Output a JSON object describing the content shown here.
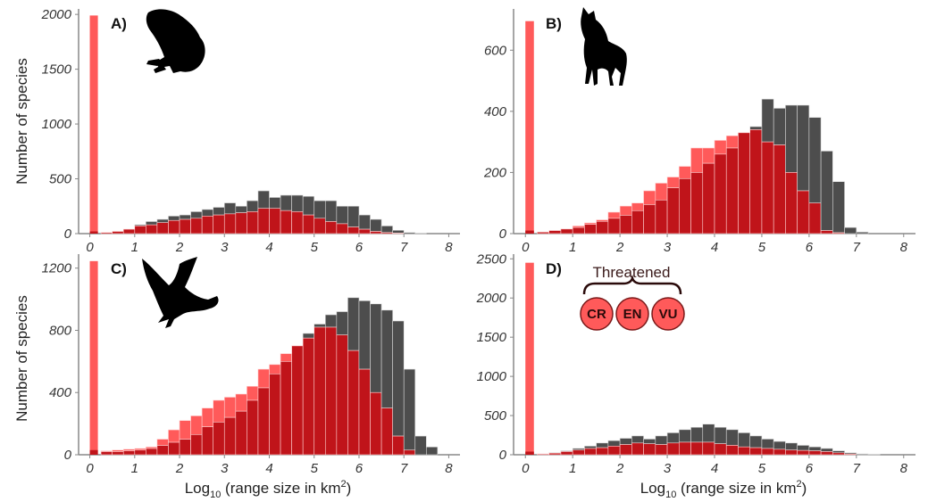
{
  "colors": {
    "threatened_fill": "#ff5a5a",
    "overlap_fill": "#c0141a",
    "total_fill": "#4d4d4d",
    "axis": "#888888",
    "silhouette": "#000000"
  },
  "xlabel_prefix": "Log",
  "xlabel_subscript": "10",
  "xlabel_main": " (range size in km",
  "xlabel_superscript": "2",
  "xlabel_suffix": ")",
  "ylabel": "Number of species",
  "legend": {
    "title": "Threatened",
    "categories": [
      "CR",
      "EN",
      "VU"
    ]
  },
  "chart_data": [
    {
      "type": "bar",
      "panel": "A)",
      "icon": "frog-silhouette-icon",
      "xlim": [
        -0.25,
        8.25
      ],
      "ylim": [
        0,
        2050
      ],
      "xticks": [
        0,
        1,
        2,
        3,
        4,
        5,
        6,
        7,
        8
      ],
      "yticks": [
        0,
        500,
        1000,
        1500,
        2000
      ],
      "ylabel": "Number of species",
      "zero_bin": {
        "x": 0,
        "width": 0.18,
        "threatened": 1990,
        "total": 20
      },
      "bins": {
        "start": 0.25,
        "width": 0.25,
        "total": [
          10,
          20,
          40,
          80,
          110,
          130,
          160,
          170,
          200,
          220,
          240,
          280,
          250,
          300,
          390,
          330,
          350,
          350,
          340,
          300,
          300,
          250,
          250,
          170,
          130,
          70,
          30,
          10,
          5
        ],
        "threatened": [
          10,
          20,
          40,
          70,
          80,
          100,
          120,
          130,
          140,
          160,
          170,
          180,
          190,
          200,
          230,
          230,
          210,
          200,
          170,
          140,
          110,
          90,
          60,
          40,
          20,
          10,
          5,
          0,
          0
        ]
      }
    },
    {
      "type": "bar",
      "panel": "B)",
      "icon": "wolf-silhouette-icon",
      "xlim": [
        -0.25,
        8.25
      ],
      "ylim": [
        0,
        735
      ],
      "xticks": [
        0,
        1,
        2,
        3,
        4,
        5,
        6,
        7,
        8
      ],
      "yticks": [
        0,
        200,
        400,
        600
      ],
      "zero_bin": {
        "x": 0,
        "width": 0.18,
        "threatened": 695,
        "total": 10
      },
      "bins": {
        "start": 0.25,
        "width": 0.25,
        "total": [
          5,
          10,
          15,
          20,
          30,
          40,
          50,
          60,
          75,
          95,
          110,
          150,
          180,
          200,
          230,
          260,
          280,
          330,
          350,
          440,
          410,
          420,
          420,
          380,
          270,
          170,
          20,
          5
        ],
        "threatened": [
          5,
          10,
          15,
          25,
          35,
          45,
          70,
          90,
          100,
          140,
          165,
          185,
          220,
          280,
          280,
          305,
          320,
          330,
          340,
          300,
          290,
          200,
          140,
          100,
          10,
          3,
          0,
          0
        ]
      }
    },
    {
      "type": "bar",
      "panel": "C)",
      "icon": "bird-silhouette-icon",
      "xlim": [
        -0.25,
        8.25
      ],
      "ylim": [
        0,
        1290
      ],
      "xticks": [
        0,
        1,
        2,
        3,
        4,
        5,
        6,
        7,
        8
      ],
      "yticks": [
        0,
        400,
        800,
        1200
      ],
      "ylabel": "Number of species",
      "zero_bin": {
        "x": 0,
        "width": 0.18,
        "threatened": 1245,
        "total": 30
      },
      "bins": {
        "start": 0.25,
        "width": 0.25,
        "total": [
          20,
          20,
          25,
          30,
          40,
          60,
          80,
          100,
          130,
          180,
          210,
          240,
          280,
          350,
          430,
          520,
          600,
          700,
          780,
          840,
          900,
          920,
          1010,
          990,
          970,
          930,
          860,
          550,
          120,
          50
        ],
        "threatened": [
          25,
          30,
          35,
          40,
          50,
          100,
          160,
          220,
          250,
          300,
          350,
          370,
          390,
          440,
          550,
          580,
          650,
          700,
          750,
          820,
          820,
          770,
          670,
          550,
          400,
          300,
          120,
          30,
          0,
          0
        ]
      }
    },
    {
      "type": "bar",
      "panel": "D)",
      "icon": "",
      "xlim": [
        -0.25,
        8.25
      ],
      "ylim": [
        0,
        2560
      ],
      "xticks": [
        0,
        1,
        2,
        3,
        4,
        5,
        6,
        7,
        8
      ],
      "yticks": [
        0,
        500,
        1000,
        1500,
        2000,
        2500
      ],
      "zero_bin": {
        "x": 0,
        "width": 0.18,
        "threatened": 2450,
        "total": 40
      },
      "bins": {
        "start": 0.25,
        "width": 0.25,
        "total": [
          10,
          25,
          50,
          80,
          110,
          150,
          180,
          210,
          240,
          200,
          240,
          280,
          320,
          350,
          390,
          350,
          320,
          280,
          240,
          200,
          170,
          150,
          120,
          100,
          80,
          50,
          25,
          10,
          5
        ],
        "threatened": [
          10,
          20,
          40,
          60,
          80,
          90,
          110,
          130,
          150,
          140,
          130,
          150,
          160,
          160,
          160,
          140,
          120,
          100,
          90,
          80,
          70,
          60,
          55,
          50,
          40,
          25,
          10,
          0,
          0
        ]
      }
    }
  ]
}
